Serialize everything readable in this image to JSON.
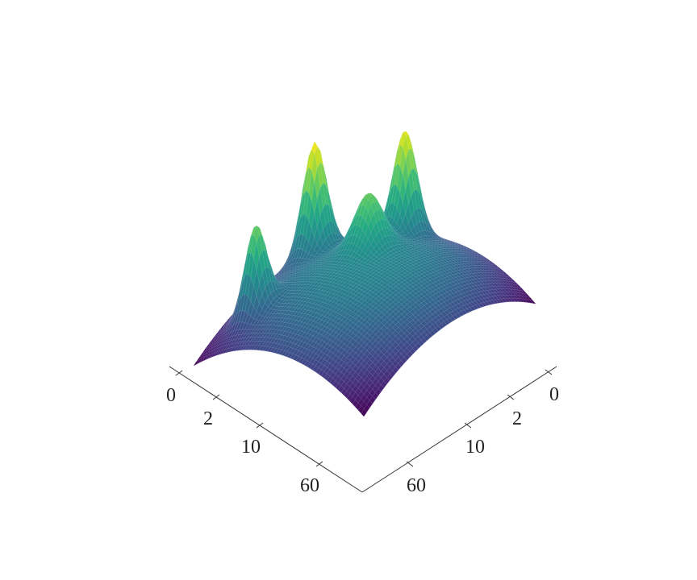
{
  "chart_data": {
    "type": "surface",
    "colormap": "viridis",
    "grid": false,
    "axes": [
      {
        "name": "left-axis",
        "scale": "log",
        "tick_labels": [
          "0",
          "2",
          "10",
          "60"
        ]
      },
      {
        "name": "right-axis",
        "scale": "log",
        "tick_labels": [
          "0",
          "2",
          "10",
          "60"
        ]
      }
    ],
    "surface": {
      "base": "dome",
      "peaks": [
        {
          "u": 0.16,
          "v": 0.8,
          "height": 0.55,
          "width": 0.045
        },
        {
          "u": 0.1,
          "v": 0.4,
          "height": 0.75,
          "width": 0.05
        },
        {
          "u": 0.37,
          "v": 0.14,
          "height": 0.7,
          "width": 0.05
        },
        {
          "u": 0.4,
          "v": 0.38,
          "height": 0.35,
          "width": 0.06
        }
      ]
    }
  }
}
